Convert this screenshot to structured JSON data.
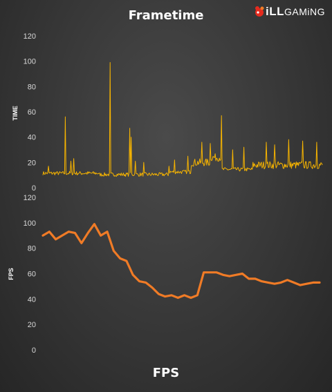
{
  "logo": {
    "brand_prefix": "iLL",
    "brand_suffix": "GAMiNG"
  },
  "colors": {
    "frametime": "#f7b400",
    "fps": "#f07b26",
    "tick": "#d9d9d9",
    "grid": "#555555"
  },
  "chart_data": [
    {
      "type": "line",
      "title": "Frametime",
      "xlabel": "",
      "ylabel": "TIME",
      "ylim": [
        0,
        120
      ],
      "yticks": [
        0,
        20,
        40,
        60,
        80,
        100,
        120
      ],
      "grid": false,
      "series": [
        {
          "points": 400,
          "baseline_segments": [
            {
              "from": 0.0,
              "to": 0.2,
              "level": 11
            },
            {
              "from": 0.2,
              "to": 0.45,
              "level": 10
            },
            {
              "from": 0.45,
              "to": 0.53,
              "level": 12
            },
            {
              "from": 0.53,
              "to": 0.6,
              "level": 19
            },
            {
              "from": 0.6,
              "to": 0.64,
              "level": 23
            },
            {
              "from": 0.64,
              "to": 0.75,
              "level": 14
            },
            {
              "from": 0.75,
              "to": 1.0,
              "level": 17
            }
          ],
          "spikes": [
            {
              "at": 0.02,
              "value": 17
            },
            {
              "at": 0.08,
              "value": 56
            },
            {
              "at": 0.1,
              "value": 21
            },
            {
              "at": 0.11,
              "value": 23
            },
            {
              "at": 0.24,
              "value": 99
            },
            {
              "at": 0.31,
              "value": 47
            },
            {
              "at": 0.315,
              "value": 40
            },
            {
              "at": 0.33,
              "value": 21
            },
            {
              "at": 0.36,
              "value": 20
            },
            {
              "at": 0.45,
              "value": 17
            },
            {
              "at": 0.47,
              "value": 22
            },
            {
              "at": 0.52,
              "value": 25
            },
            {
              "at": 0.57,
              "value": 36
            },
            {
              "at": 0.6,
              "value": 35
            },
            {
              "at": 0.64,
              "value": 57
            },
            {
              "at": 0.68,
              "value": 30
            },
            {
              "at": 0.72,
              "value": 32
            },
            {
              "at": 0.8,
              "value": 36
            },
            {
              "at": 0.83,
              "value": 34
            },
            {
              "at": 0.88,
              "value": 38
            },
            {
              "at": 0.93,
              "value": 37
            },
            {
              "at": 0.98,
              "value": 36
            }
          ]
        }
      ]
    },
    {
      "type": "line",
      "title": "FPS",
      "xlabel": "",
      "ylabel": "FPS",
      "ylim": [
        0,
        120
      ],
      "yticks": [
        0,
        20,
        40,
        60,
        80,
        100,
        120
      ],
      "grid": false,
      "series": [
        {
          "values": [
            90,
            93,
            87,
            90,
            93,
            92,
            84,
            92,
            99,
            90,
            93,
            78,
            72,
            70,
            59,
            54,
            53,
            49,
            44,
            42,
            43,
            41,
            43,
            41,
            43,
            61,
            61,
            61,
            59,
            58,
            59,
            60,
            56,
            56,
            54,
            53,
            52,
            53,
            55,
            53,
            51,
            52,
            53,
            53
          ]
        }
      ]
    }
  ]
}
